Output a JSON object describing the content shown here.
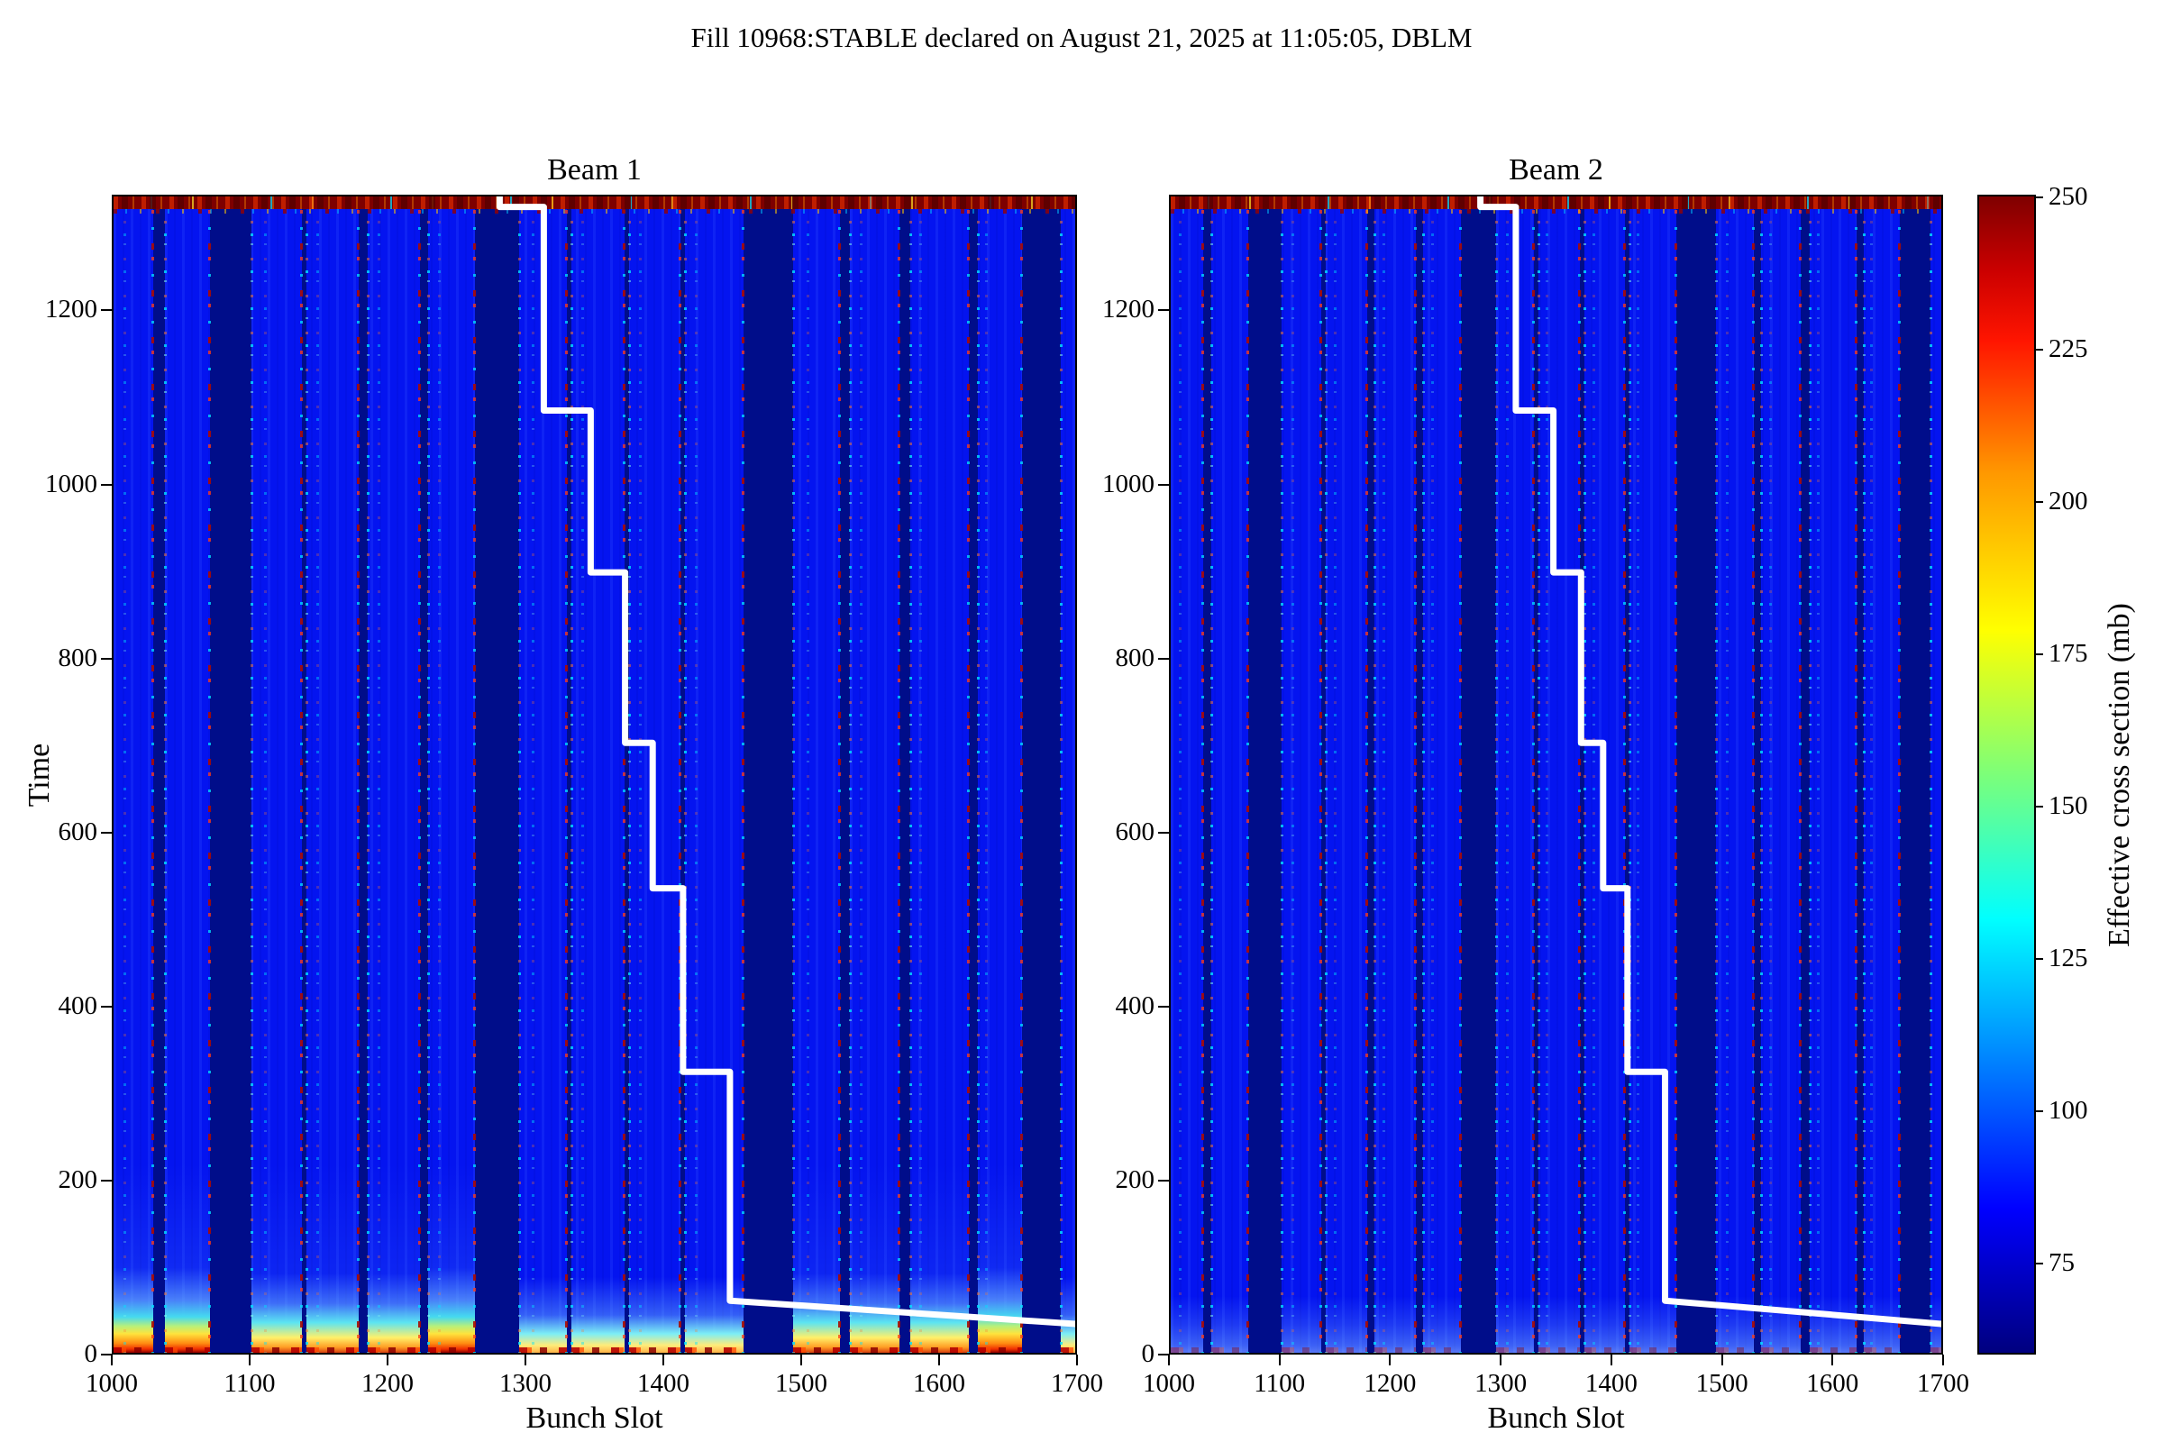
{
  "figure": {
    "title": "Fill 10968:STABLE declared on August 21, 2025 at 11:05:05, DBLM"
  },
  "axes": {
    "xlabel": "Bunch Slot",
    "ylabel": "Time",
    "x_ticks": [
      1000,
      1100,
      1200,
      1300,
      1400,
      1500,
      1600,
      1700
    ],
    "y_ticks": [
      0,
      200,
      400,
      600,
      800,
      1000,
      1200
    ]
  },
  "colorbar": {
    "label": "Effective cross section (mb)",
    "ticks": [
      250,
      225,
      200,
      175,
      150,
      125,
      100,
      75
    ],
    "vmin": 60,
    "vmax": 250.5,
    "colormap": "jet"
  },
  "chart_data": {
    "type": "heatmap",
    "title": "Fill 10968:STABLE declared on August 21, 2025 at 11:05:05, DBLM",
    "xlabel": "Bunch Slot",
    "ylabel": "Time",
    "x_range": [
      1000,
      1700
    ],
    "y_range": [
      0,
      1333
    ],
    "value_label": "Effective cross section (mb)",
    "value_range": [
      60,
      250.5
    ],
    "background_train_value": 88,
    "gap_value": 65,
    "top_strip_value": 250,
    "step_line_note": "identical white step line overlaid on both panels, coords [bunch_slot, time]",
    "step_line": [
      [
        1280,
        1333
      ],
      [
        1280,
        1321
      ],
      [
        1312,
        1321
      ],
      [
        1312,
        1087
      ],
      [
        1346,
        1087
      ],
      [
        1346,
        901
      ],
      [
        1371,
        901
      ],
      [
        1371,
        705
      ],
      [
        1391,
        705
      ],
      [
        1391,
        538
      ],
      [
        1413,
        538
      ],
      [
        1413,
        327
      ],
      [
        1447,
        327
      ],
      [
        1447,
        64
      ],
      [
        1700,
        37
      ],
      [
        1700,
        0
      ]
    ],
    "panels": [
      {
        "title": "Beam 1",
        "trains": [
          [
            1000,
            1029,
            3
          ],
          [
            1037,
            1070,
            3
          ],
          [
            1100,
            1137,
            2
          ],
          [
            1140,
            1178,
            2
          ],
          [
            1184,
            1222,
            2
          ],
          [
            1228,
            1262,
            3
          ],
          [
            1294,
            1329,
            1
          ],
          [
            1332,
            1371,
            1
          ],
          [
            1373,
            1411,
            1
          ],
          [
            1414,
            1457,
            1
          ],
          [
            1493,
            1527,
            2
          ],
          [
            1534,
            1570,
            2
          ],
          [
            1578,
            1620,
            2
          ],
          [
            1627,
            1659,
            3
          ],
          [
            1687,
            1700,
            1
          ]
        ],
        "gaps": [
          [
            1029,
            1037
          ],
          [
            1070,
            1100
          ],
          [
            1137,
            1140
          ],
          [
            1178,
            1184
          ],
          [
            1222,
            1228
          ],
          [
            1262,
            1294
          ],
          [
            1329,
            1332
          ],
          [
            1371,
            1373
          ],
          [
            1411,
            1414
          ],
          [
            1457,
            1493
          ],
          [
            1527,
            1534
          ],
          [
            1570,
            1578
          ],
          [
            1620,
            1627
          ],
          [
            1659,
            1687
          ]
        ],
        "hairlines": [
          1008,
          1110,
          1148,
          1192,
          1236,
          1304,
          1340,
          1382,
          1422,
          1503,
          1542,
          1585,
          1633
        ]
      },
      {
        "title": "Beam 2",
        "trains": [
          [
            1000,
            1029,
            0
          ],
          [
            1037,
            1070,
            0
          ],
          [
            1100,
            1137,
            0
          ],
          [
            1140,
            1178,
            0
          ],
          [
            1184,
            1222,
            0
          ],
          [
            1228,
            1262,
            0
          ],
          [
            1294,
            1329,
            0
          ],
          [
            1332,
            1371,
            0
          ],
          [
            1373,
            1411,
            0
          ],
          [
            1414,
            1457,
            0
          ],
          [
            1493,
            1527,
            0
          ],
          [
            1534,
            1570,
            0
          ],
          [
            1578,
            1620,
            0
          ],
          [
            1627,
            1659,
            0
          ],
          [
            1687,
            1700,
            0
          ]
        ],
        "gaps": [
          [
            1029,
            1037
          ],
          [
            1070,
            1100
          ],
          [
            1137,
            1140
          ],
          [
            1178,
            1184
          ],
          [
            1222,
            1228
          ],
          [
            1262,
            1294
          ],
          [
            1329,
            1332
          ],
          [
            1371,
            1373
          ],
          [
            1411,
            1414
          ],
          [
            1457,
            1493
          ],
          [
            1527,
            1534
          ],
          [
            1570,
            1578
          ],
          [
            1620,
            1627
          ],
          [
            1659,
            1687
          ]
        ],
        "hairlines": [
          1008,
          1110,
          1148,
          1192,
          1236,
          1304,
          1340,
          1382,
          1422,
          1503,
          1542,
          1585,
          1633
        ]
      }
    ]
  }
}
